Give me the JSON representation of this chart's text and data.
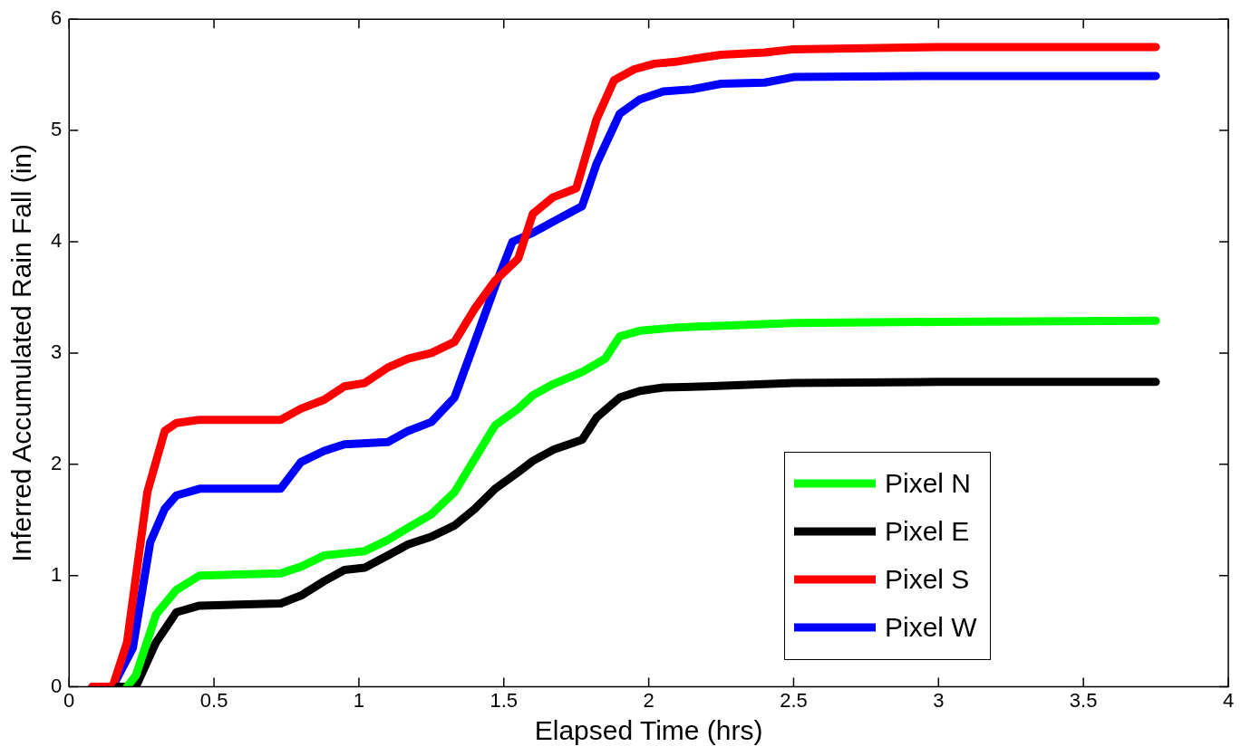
{
  "chart_data": {
    "type": "line",
    "xlabel": "Elapsed Time (hrs)",
    "ylabel": "Inferred Accumulated Rain Fall (in)",
    "xlim": [
      0,
      4
    ],
    "xticks": [
      0,
      0.5,
      1,
      1.5,
      2,
      2.5,
      3,
      3.5,
      4
    ],
    "ylim": [
      0,
      6
    ],
    "yticks": [
      0,
      1,
      2,
      3,
      4,
      5,
      6
    ],
    "grid": false,
    "legend": "bottom right",
    "marker": "none",
    "line_style": "solid",
    "series": [
      {
        "name": "Pixel N",
        "color": "#00ff00",
        "x": [
          0.2,
          0.23,
          0.3,
          0.37,
          0.45,
          0.73,
          0.8,
          0.88,
          0.95,
          1.02,
          1.1,
          1.17,
          1.25,
          1.33,
          1.4,
          1.47,
          1.55,
          1.6,
          1.67,
          1.77,
          1.85,
          1.9,
          1.97,
          2.1,
          2.3,
          2.5,
          3.0,
          3.75
        ],
        "values": [
          0,
          0.1,
          0.65,
          0.87,
          1.0,
          1.02,
          1.08,
          1.18,
          1.2,
          1.22,
          1.32,
          1.43,
          1.55,
          1.75,
          2.05,
          2.35,
          2.5,
          2.62,
          2.72,
          2.83,
          2.95,
          3.15,
          3.2,
          3.23,
          3.25,
          3.27,
          3.28,
          3.29
        ]
      },
      {
        "name": "Pixel E",
        "color": "#000000",
        "x": [
          0.17,
          0.23,
          0.3,
          0.37,
          0.45,
          0.73,
          0.8,
          0.88,
          0.95,
          1.02,
          1.1,
          1.17,
          1.25,
          1.33,
          1.4,
          1.47,
          1.55,
          1.6,
          1.67,
          1.77,
          1.82,
          1.9,
          1.97,
          2.05,
          2.2,
          2.5,
          3.0,
          3.75
        ],
        "values": [
          0,
          0,
          0.4,
          0.67,
          0.73,
          0.75,
          0.82,
          0.95,
          1.05,
          1.07,
          1.18,
          1.28,
          1.35,
          1.45,
          1.6,
          1.78,
          1.93,
          2.03,
          2.13,
          2.22,
          2.42,
          2.6,
          2.66,
          2.69,
          2.7,
          2.73,
          2.74,
          2.74
        ]
      },
      {
        "name": "Pixel S",
        "color": "#ff0000",
        "x": [
          0.08,
          0.15,
          0.2,
          0.27,
          0.33,
          0.37,
          0.45,
          0.73,
          0.8,
          0.88,
          0.95,
          1.02,
          1.1,
          1.17,
          1.25,
          1.33,
          1.4,
          1.47,
          1.55,
          1.6,
          1.67,
          1.75,
          1.82,
          1.88,
          1.95,
          2.02,
          2.1,
          2.17,
          2.25,
          2.4,
          2.5,
          3.0,
          3.75
        ],
        "values": [
          0,
          0,
          0.4,
          1.75,
          2.3,
          2.37,
          2.4,
          2.4,
          2.5,
          2.58,
          2.7,
          2.73,
          2.87,
          2.95,
          3.0,
          3.1,
          3.4,
          3.65,
          3.85,
          4.25,
          4.4,
          4.48,
          5.1,
          5.45,
          5.55,
          5.6,
          5.62,
          5.65,
          5.68,
          5.7,
          5.73,
          5.75,
          5.75
        ]
      },
      {
        "name": "Pixel W",
        "color": "#0000ff",
        "x": [
          0.08,
          0.15,
          0.22,
          0.28,
          0.33,
          0.37,
          0.45,
          0.73,
          0.8,
          0.88,
          0.95,
          1.1,
          1.17,
          1.25,
          1.33,
          1.4,
          1.47,
          1.53,
          1.6,
          1.67,
          1.77,
          1.82,
          1.9,
          1.97,
          2.05,
          2.15,
          2.25,
          2.4,
          2.5,
          3.0,
          3.75
        ],
        "values": [
          0,
          0,
          0.35,
          1.3,
          1.6,
          1.72,
          1.78,
          1.78,
          2.02,
          2.12,
          2.18,
          2.2,
          2.3,
          2.38,
          2.6,
          3.1,
          3.6,
          4.0,
          4.08,
          4.18,
          4.32,
          4.7,
          5.15,
          5.28,
          5.35,
          5.37,
          5.42,
          5.43,
          5.48,
          5.49,
          5.49
        ]
      }
    ]
  }
}
